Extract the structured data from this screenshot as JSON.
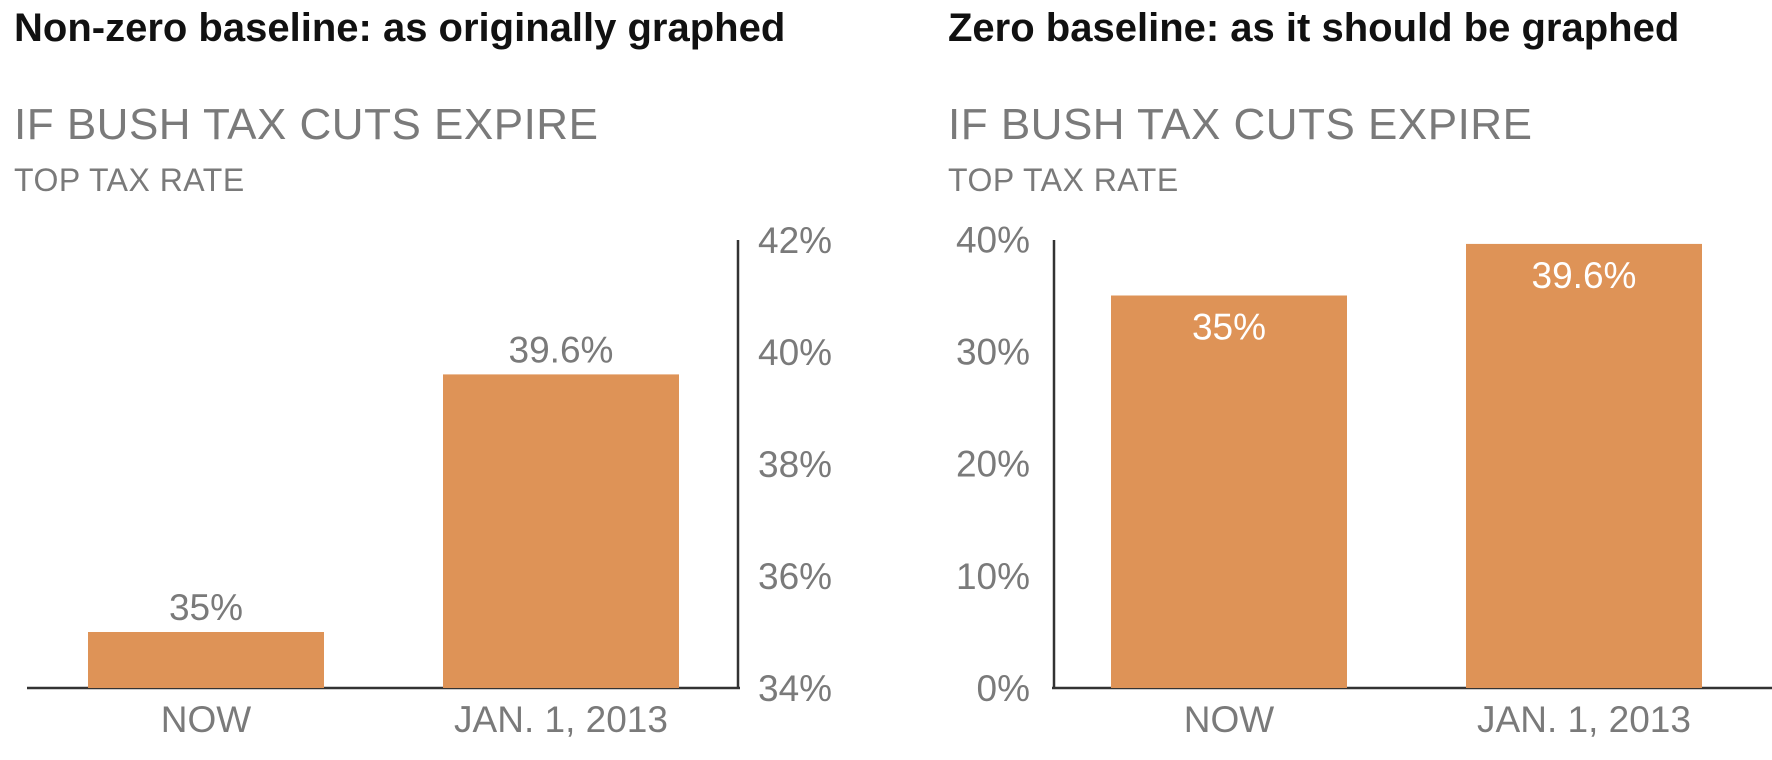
{
  "panels": [
    {
      "heading_bold": "Non-zero baseline",
      "heading_rest": ": as originally graphed"
    },
    {
      "heading_bold": "Zero baseline",
      "heading_rest": ": as it should be graphed"
    }
  ],
  "colors": {
    "bar": "#DE9357",
    "axis": "#333333",
    "text": "#7a7a7a"
  },
  "chart_data": [
    {
      "type": "bar",
      "title": "IF BUSH TAX CUTS EXPIRE",
      "subtitle": "TOP TAX RATE",
      "categories": [
        "NOW",
        "JAN. 1, 2013"
      ],
      "values": [
        35,
        39.6
      ],
      "data_labels": [
        "35%",
        "39.6%"
      ],
      "ylim": [
        34,
        42
      ],
      "yticks": [
        34,
        36,
        38,
        40,
        42
      ],
      "ytick_labels": [
        "34%",
        "36%",
        "38%",
        "40%",
        "42%"
      ],
      "y_axis_position": "right",
      "data_label_position": "above",
      "grid": false,
      "legend": "none"
    },
    {
      "type": "bar",
      "title": "IF BUSH TAX CUTS EXPIRE",
      "subtitle": "TOP TAX RATE",
      "categories": [
        "NOW",
        "JAN. 1, 2013"
      ],
      "values": [
        35,
        39.6
      ],
      "data_labels": [
        "35%",
        "39.6%"
      ],
      "ylim": [
        0,
        42
      ],
      "yticks": [
        0,
        10,
        20,
        30,
        40
      ],
      "ytick_labels": [
        "0%",
        "10%",
        "20%",
        "30%",
        "40%"
      ],
      "y_axis_position": "left",
      "data_label_position": "inside",
      "grid": false,
      "legend": "none"
    }
  ]
}
